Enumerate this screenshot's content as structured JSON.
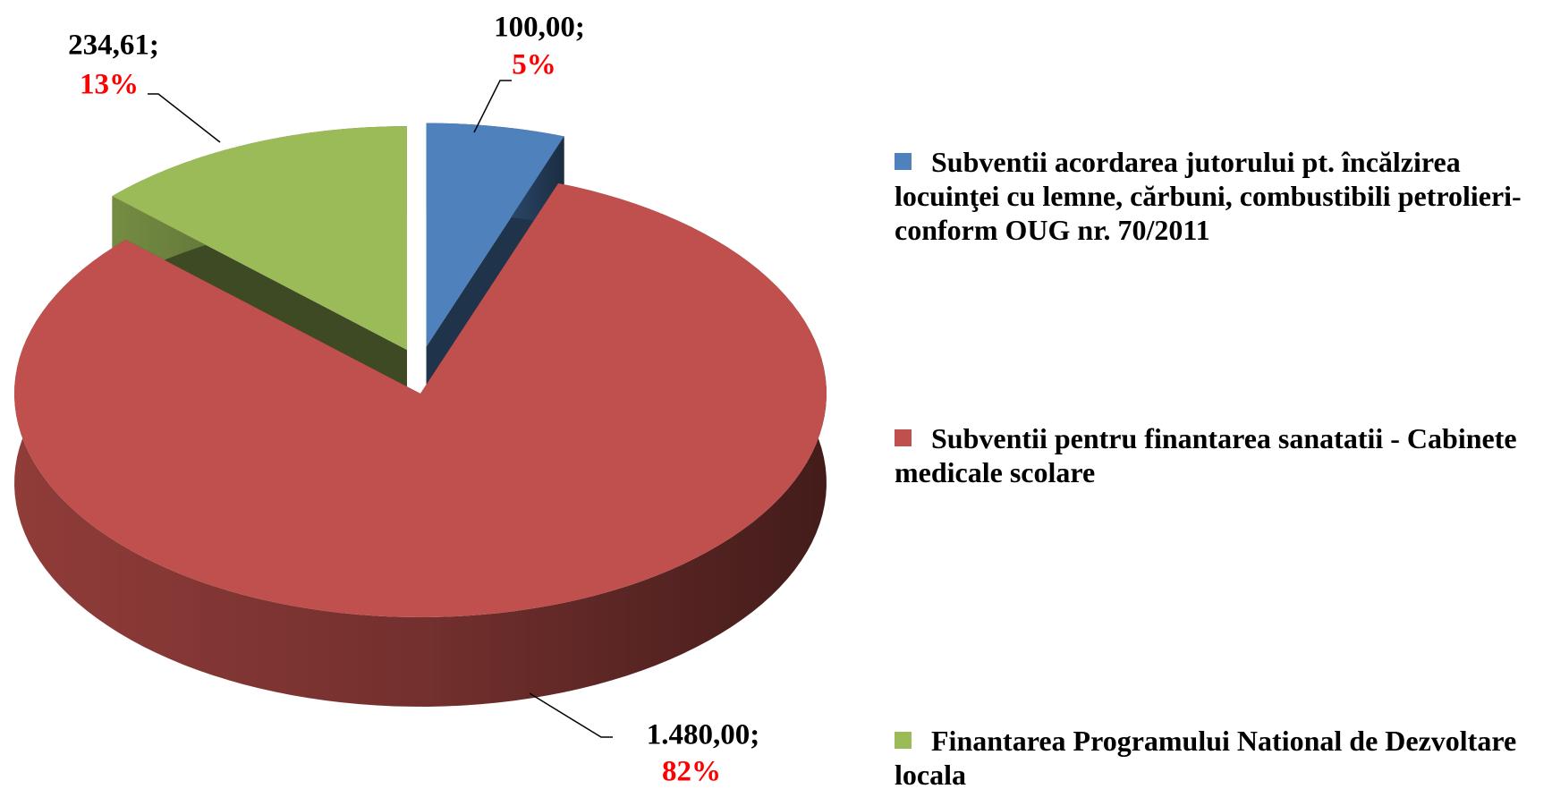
{
  "chart_data": {
    "type": "pie3d",
    "series": [
      {
        "name": "Subventii acordarea jutorului pt. încălzirea locuinţei cu lemne, cărbuni, combustibili petrolieri-conform OUG nr. 70/2011",
        "color": "#4f81bd",
        "value": 100.0,
        "value_label": "100,00;",
        "percent": 5,
        "percent_label": "5%"
      },
      {
        "name": "Subventii pentru finantarea sanatatii - Cabinete medicale scolare",
        "color": "#c0504d",
        "value": 1480.0,
        "value_label": "1.480,00;",
        "percent": 82,
        "percent_label": "82%"
      },
      {
        "name": "Finantarea Programului National de Dezvoltare locala",
        "color": "#9bbb59",
        "value": 234.61,
        "value_label": "234,61;",
        "percent": 13,
        "percent_label": "13%"
      }
    ],
    "legend": "right"
  }
}
